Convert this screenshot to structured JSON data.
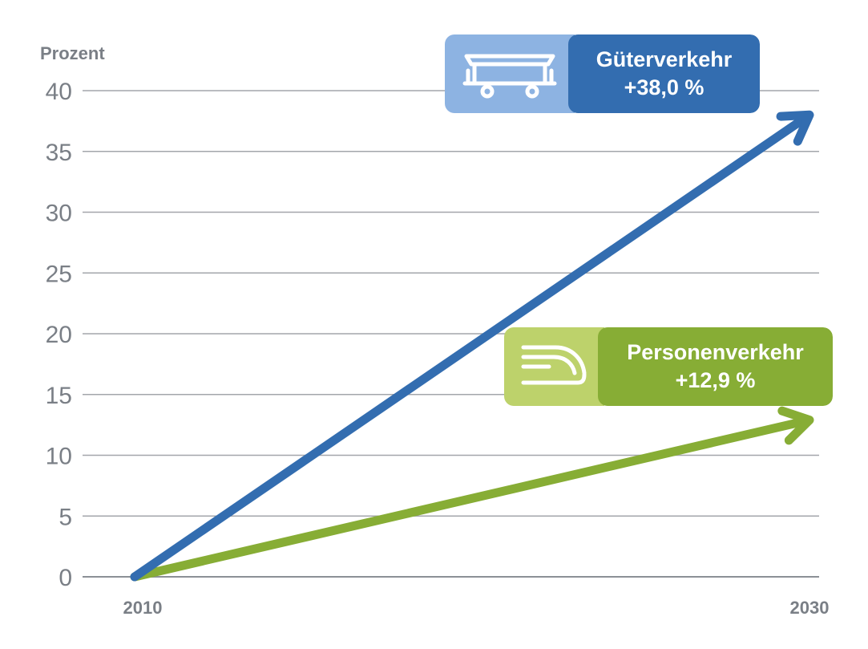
{
  "chart_data": {
    "type": "line",
    "ylabel": "Prozent",
    "ylim": [
      0,
      40
    ],
    "yticks": [
      "0",
      "5",
      "10",
      "15",
      "20",
      "25",
      "30",
      "35",
      "40"
    ],
    "x": [
      "2010",
      "2030"
    ],
    "grid": true,
    "series": [
      {
        "name": "Güterverkehr",
        "label": "+38,0 %",
        "values": [
          0,
          38.0
        ],
        "color": "#336db0",
        "icon": "freight-wagon-icon"
      },
      {
        "name": "Personenverkehr",
        "label": "+12,9 %",
        "values": [
          0,
          12.9
        ],
        "color": "#87ad35",
        "icon": "train-nose-icon"
      }
    ]
  }
}
